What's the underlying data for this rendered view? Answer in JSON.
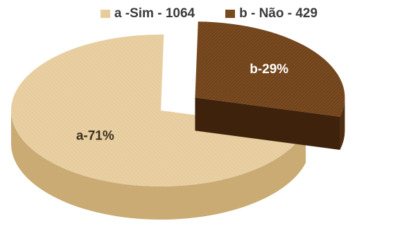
{
  "chart_data": {
    "type": "pie",
    "title": "",
    "legend_position": "top",
    "slices": [
      {
        "legend": "a -Sim - 1064",
        "label": "a-71%",
        "value": 1064,
        "percent": 71,
        "color": "#e7cd9e",
        "color_side": "#c9ab73",
        "label_color": "#3b3020",
        "exploded": false
      },
      {
        "legend": "b - Não - 429",
        "label": "b-29%",
        "value": 429,
        "percent": 29,
        "color": "#7a4a1f",
        "color_side": "#4f2d10",
        "label_color": "#ffffff",
        "exploded": true
      }
    ]
  }
}
